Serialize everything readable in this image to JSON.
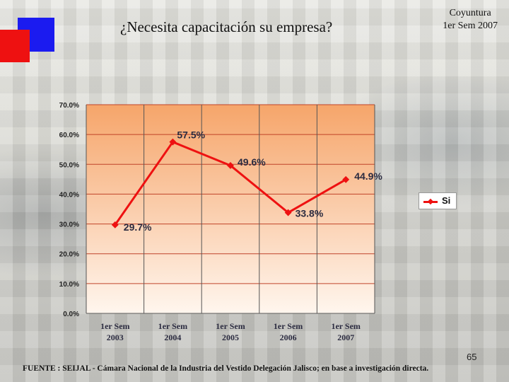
{
  "header": {
    "title": "¿Necesita capacitación su empresa?",
    "period_line1": "Coyuntura",
    "period_line2": "1er Sem 2007"
  },
  "footer": {
    "page_number": "65",
    "source": "FUENTE : SEIJAL - Cámara Nacional de la Industria del Vestido Delegación Jalisco; en base a investigación directa."
  },
  "colors": {
    "series": "#ee1111",
    "plot_top": "#f6a56a",
    "plot_bottom": "#fff6ee",
    "gridline": "#c0442a",
    "decor_blue": "#1b1bf0",
    "decor_red": "#ee1111"
  },
  "chart_data": {
    "type": "line",
    "categories": [
      "1er Sem 2003",
      "1er Sem 2004",
      "1er Sem 2005",
      "1er Sem 2006",
      "1er Sem 2007"
    ],
    "category_lines": [
      [
        "1er Sem",
        "2003"
      ],
      [
        "1er Sem",
        "2004"
      ],
      [
        "1er Sem",
        "2005"
      ],
      [
        "1er Sem",
        "2006"
      ],
      [
        "1er Sem",
        "2007"
      ]
    ],
    "series": [
      {
        "name": "Si",
        "values": [
          29.7,
          57.5,
          49.6,
          33.8,
          44.9
        ]
      }
    ],
    "data_labels": [
      "29.7%",
      "57.5%",
      "49.6%",
      "33.8%",
      "44.9%"
    ],
    "yticks": [
      "0.0%",
      "10.0%",
      "20.0%",
      "30.0%",
      "40.0%",
      "50.0%",
      "60.0%",
      "70.0%"
    ],
    "ylim": [
      0,
      70
    ],
    "grid": true,
    "legend": "right",
    "title": "",
    "xlabel": "",
    "ylabel": ""
  }
}
